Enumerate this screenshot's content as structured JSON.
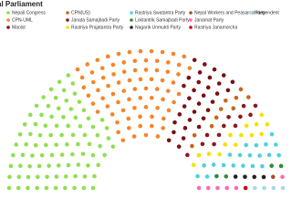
{
  "chart_data": {
    "type": "parliament",
    "title": "al Parliament",
    "categories": [
      "Nepali Congress",
      "CPN-UML",
      "Maoist",
      "CPN(US)",
      "Janata Samajbadi Party",
      "Rastriya Prajatantra Party",
      "Rastriya Swatantra Party",
      "Loktantrik Samajbadi Party",
      "Nagarik Unmukti Party",
      "Nepal Workers and Peasants Party",
      "Janamat Party",
      "Rastriya Janamorcha",
      "Independent"
    ],
    "values": [
      89,
      78,
      32,
      10,
      12,
      14,
      20,
      4,
      4,
      1,
      6,
      1,
      4
    ],
    "colors": [
      "#8ee04f",
      "#f5852a",
      "#7a1010",
      "#c8641e",
      "#8b1a1a",
      "#f2e200",
      "#4dd0e1",
      "#2e8b3a",
      "#222222",
      "#a0522d",
      "#ff69b4",
      "#cc0000",
      "#a8d8ea"
    ]
  }
}
